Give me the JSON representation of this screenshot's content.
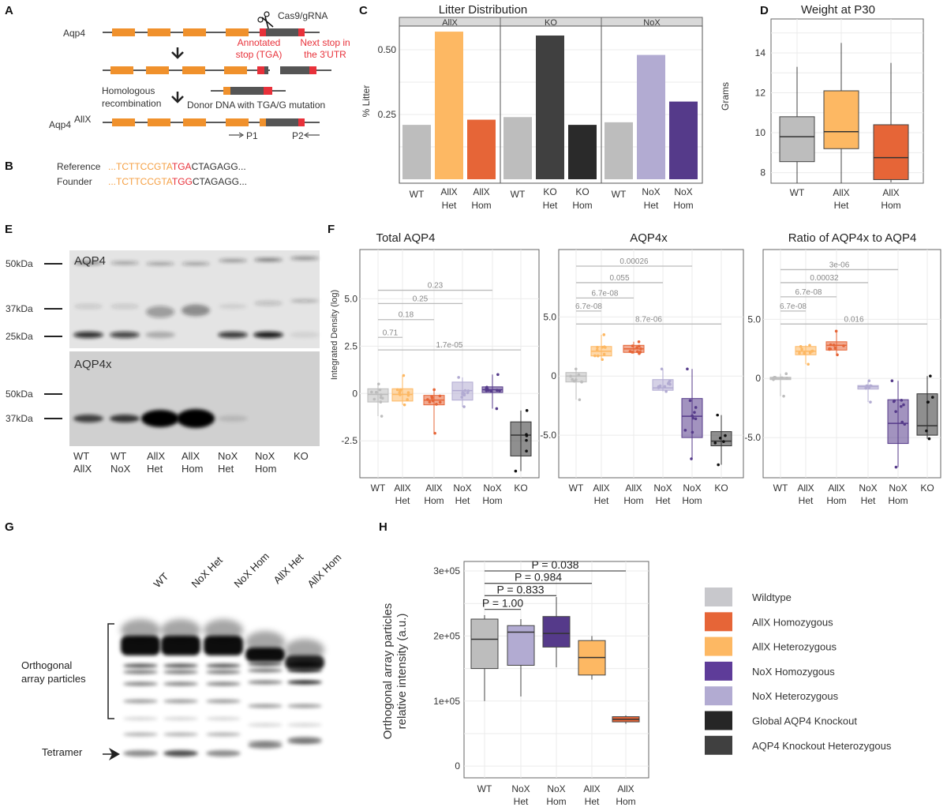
{
  "panel_labels": [
    "A",
    "B",
    "C",
    "D",
    "E",
    "F",
    "G",
    "H"
  ],
  "panel_a": {
    "gene_label": "Aqp4",
    "cas9_label": "Cas9/gRNA",
    "annotated_stop": [
      "Annotated",
      "stop (TGA)"
    ],
    "next_stop": [
      "Next stop in",
      "the 3'UTR"
    ],
    "recombination": [
      "Homologous",
      "recombination"
    ],
    "donor_label": "Donor DNA with TGA/G mutation",
    "allele_label": "Aqp4",
    "allele_superscript": "AllX",
    "primer1": "P1",
    "primer2": "P2",
    "colors": {
      "exon": "#f0912c",
      "stop": "#e8313a",
      "utr": "#555555"
    }
  },
  "panel_b": {
    "rows": [
      {
        "label": "Reference",
        "prefix": "...TCTTCCGTA",
        "codon": "TGA",
        "suffix": "CTAGAGG..."
      },
      {
        "label": "Founder",
        "prefix": "...TCTTCCGTA",
        "codon": "TGG",
        "suffix": "CTAGAGG..."
      }
    ],
    "colors": {
      "prefix": "#f5a044",
      "codon": "#e8313a",
      "suffix": "#333333"
    }
  },
  "panel_e": {
    "blots": [
      "AQP4",
      "AQP4x"
    ],
    "markers_top": [
      "50kDa",
      "37kDa",
      "25kDa"
    ],
    "markers_bottom": [
      "50kDa",
      "37kDa"
    ],
    "lanes": [
      [
        "WT",
        "AllX"
      ],
      [
        "WT",
        "NoX"
      ],
      [
        "AllX",
        "Het"
      ],
      [
        "AllX",
        "Hom"
      ],
      [
        "NoX",
        "Het"
      ],
      [
        "NoX",
        "Hom"
      ],
      [
        "KO",
        ""
      ]
    ]
  },
  "panel_g": {
    "lanes": [
      "WT",
      "NoX Het",
      "NoX Hom",
      "AllX Het",
      "AllX Hom"
    ],
    "bracket_label": [
      "Orthogonal",
      "array particles"
    ],
    "arrow_label": "Tetramer"
  },
  "chart_data": [
    {
      "type": "bar",
      "title": "Litter Distribution",
      "ylabel": "% Litter",
      "yticks": [
        0.25,
        0.5
      ],
      "ytick_labels": [
        "0.25",
        "0.50"
      ],
      "ylim": [
        0,
        0.59
      ],
      "grid": true,
      "facets": [
        {
          "name": "AllX",
          "categories": [
            [
              "WT"
            ],
            [
              "AllX",
              "Het"
            ],
            [
              "AllX",
              "Hom"
            ]
          ],
          "values": [
            0.21,
            0.57,
            0.23
          ],
          "colors": [
            "#bdbdbd",
            "#fdb863",
            "#e66537"
          ]
        },
        {
          "name": "KO",
          "categories": [
            [
              "WT"
            ],
            [
              "KO",
              "Het"
            ],
            [
              "KO",
              "Hom"
            ]
          ],
          "values": [
            0.24,
            0.555,
            0.21
          ],
          "colors": [
            "#bdbdbd",
            "#404040",
            "#2a2a2a"
          ]
        },
        {
          "name": "NoX",
          "categories": [
            [
              "WT"
            ],
            [
              "NoX",
              "Het"
            ],
            [
              "NoX",
              "Hom"
            ]
          ],
          "values": [
            0.22,
            0.48,
            0.3
          ],
          "colors": [
            "#bdbdbd",
            "#b2abd2",
            "#553a8a"
          ]
        }
      ]
    },
    {
      "type": "box",
      "title": "Weight at P30",
      "ylabel": "Grams",
      "yticks": [
        8,
        10,
        12,
        14
      ],
      "ytick_labels": [
        "8",
        "10",
        "12",
        "14"
      ],
      "ylim": [
        7.47,
        15.7
      ],
      "grid": true,
      "categories": [
        [
          "WT"
        ],
        [
          "AllX",
          "Het"
        ],
        [
          "AllX",
          "Hom"
        ]
      ],
      "colors": [
        "#bdbdbd",
        "#fdb863",
        "#e66537"
      ],
      "boxes": [
        {
          "min": 7.47,
          "q1": 8.55,
          "median": 9.8,
          "q3": 10.8,
          "max": 13.3
        },
        {
          "min": 7.47,
          "q1": 9.2,
          "median": 10.05,
          "q3": 12.1,
          "max": 14.5
        },
        {
          "min": 7.5,
          "q1": 7.65,
          "median": 8.75,
          "q3": 10.4,
          "max": 13.5
        }
      ]
    },
    {
      "type": "box",
      "title": "Total AQP4",
      "ylabel": "Integrated Density (log)",
      "yticks": [
        -2.5,
        0,
        2.5,
        5.0
      ],
      "ytick_labels": [
        "-2.5",
        "0",
        "2.5",
        "5.0"
      ],
      "ylim": [
        -4.45,
        7.6
      ],
      "grid": true,
      "categories": [
        [
          "WT"
        ],
        [
          "AllX",
          "Het"
        ],
        [
          "AllX",
          "Hom"
        ],
        [
          "NoX",
          "Het"
        ],
        [
          "NoX",
          "Hom"
        ],
        [
          "KO"
        ]
      ],
      "colors": [
        "#bdbdbd",
        "#fdb863",
        "#e66537",
        "#b2abd2",
        "#553a8a",
        "#333333"
      ],
      "boxes": [
        {
          "min": -1.2,
          "q1": -0.45,
          "median": -0.05,
          "q3": 0.25,
          "max": 0.5
        },
        {
          "min": -0.6,
          "q1": -0.4,
          "median": -0.05,
          "q3": 0.25,
          "max": 0.95
        },
        {
          "min": -2.1,
          "q1": -0.6,
          "median": -0.35,
          "q3": -0.1,
          "max": 0.2
        },
        {
          "min": -0.7,
          "q1": -0.35,
          "median": 0.15,
          "q3": 0.6,
          "max": 0.85
        },
        {
          "min": -0.8,
          "q1": 0.05,
          "median": 0.2,
          "q3": 0.35,
          "max": 1.0
        },
        {
          "min": -4.1,
          "q1": -3.3,
          "median": -2.2,
          "q3": -1.5,
          "max": -0.9
        }
      ],
      "comparisons": [
        {
          "from": 0,
          "to": 1,
          "p": "0.71",
          "y": 2.96
        },
        {
          "from": 0,
          "to": 2,
          "p": "0.18",
          "y": 3.9
        },
        {
          "from": 0,
          "to": 3,
          "p": "0.25",
          "y": 4.75
        },
        {
          "from": 0,
          "to": 4,
          "p": "0.23",
          "y": 5.45
        },
        {
          "from": 0,
          "to": 5,
          "p": "1.7e-05",
          "y": 2.3
        }
      ]
    },
    {
      "type": "box",
      "title": "AQP4x",
      "yticks": [
        -5.0,
        0,
        5.0
      ],
      "ytick_labels": [
        "-5.0",
        "0",
        "5.0"
      ],
      "ylim": [
        -8.6,
        10.7
      ],
      "grid": true,
      "categories": [
        [
          "WT"
        ],
        [
          "AllX",
          "Het"
        ],
        [
          "AllX",
          "Hom"
        ],
        [
          "NoX",
          "Het"
        ],
        [
          "NoX",
          "Hom"
        ],
        [
          "KO"
        ]
      ],
      "colors": [
        "#bdbdbd",
        "#fdb863",
        "#e66537",
        "#b2abd2",
        "#553a8a",
        "#333333"
      ],
      "boxes": [
        {
          "min": -2.0,
          "q1": -0.5,
          "median": 0.0,
          "q3": 0.3,
          "max": 0.6
        },
        {
          "min": 1.4,
          "q1": 1.7,
          "median": 2.1,
          "q3": 2.5,
          "max": 3.5
        },
        {
          "min": 1.9,
          "q1": 2.0,
          "median": 2.3,
          "q3": 2.6,
          "max": 2.9
        },
        {
          "min": -1.3,
          "q1": -1.2,
          "median": -1.0,
          "q3": -0.3,
          "max": 0.6
        },
        {
          "min": -7.0,
          "q1": -5.2,
          "median": -3.4,
          "q3": -1.9,
          "max": 0.6
        },
        {
          "min": -7.5,
          "q1": -5.9,
          "median": -5.5,
          "q3": -4.7,
          "max": -3.3
        }
      ],
      "comparisons": [
        {
          "from": 0,
          "to": 1,
          "p": "6.7e-08",
          "y": 5.5
        },
        {
          "from": 0,
          "to": 2,
          "p": "6.7e-08",
          "y": 6.6
        },
        {
          "from": 0,
          "to": 3,
          "p": "0.055",
          "y": 7.9
        },
        {
          "from": 0,
          "to": 4,
          "p": "0.00026",
          "y": 9.3
        },
        {
          "from": 0,
          "to": 5,
          "p": "8.7e-06",
          "y": 4.4
        }
      ]
    },
    {
      "type": "box",
      "title": "Ratio of AQP4x to AQP4",
      "yticks": [
        -5.0,
        0,
        5.0
      ],
      "ytick_labels": [
        "-5.0",
        "0",
        "5.0"
      ],
      "ylim": [
        -8.4,
        10.9
      ],
      "grid": true,
      "categories": [
        [
          "WT"
        ],
        [
          "AllX",
          "Het"
        ],
        [
          "AllX",
          "Hom"
        ],
        [
          "NoX",
          "Het"
        ],
        [
          "NoX",
          "Hom"
        ],
        [
          "KO"
        ]
      ],
      "colors": [
        "#bdbdbd",
        "#fdb863",
        "#e66537",
        "#b2abd2",
        "#553a8a",
        "#333333"
      ],
      "boxes": [
        {
          "min": -1.5,
          "q1": -0.1,
          "median": 0.0,
          "q3": 0.1,
          "max": 0.4
        },
        {
          "min": 1.2,
          "q1": 2.0,
          "median": 2.3,
          "q3": 2.7,
          "max": 2.8
        },
        {
          "min": 2.0,
          "q1": 2.4,
          "median": 2.8,
          "q3": 3.1,
          "max": 4.0
        },
        {
          "min": -2.0,
          "q1": -0.9,
          "median": -0.7,
          "q3": -0.6,
          "max": -0.2
        },
        {
          "min": -7.5,
          "q1": -5.5,
          "median": -3.8,
          "q3": -1.8,
          "max": -0.2
        },
        {
          "min": -5.1,
          "q1": -4.8,
          "median": -4.0,
          "q3": -1.3,
          "max": 0.2
        }
      ],
      "comparisons": [
        {
          "from": 0,
          "to": 1,
          "p": "6.7e-08",
          "y": 5.7
        },
        {
          "from": 0,
          "to": 2,
          "p": "6.7e-08",
          "y": 6.9
        },
        {
          "from": 0,
          "to": 3,
          "p": "0.00032",
          "y": 8.1
        },
        {
          "from": 0,
          "to": 4,
          "p": "3e-06",
          "y": 9.2
        },
        {
          "from": 0,
          "to": 5,
          "p": "0.016",
          "y": 4.6
        }
      ]
    },
    {
      "type": "box",
      "ylabel": [
        "Orthogonal array particles",
        "relative intensity (a.u.)"
      ],
      "yticks": [
        0,
        100000,
        200000,
        300000
      ],
      "ytick_labels": [
        "0",
        "1e+05",
        "2e+05",
        "3e+05"
      ],
      "ylim": [
        -18000,
        314600
      ],
      "grid": true,
      "categories": [
        [
          "WT"
        ],
        [
          "NoX",
          "Het"
        ],
        [
          "NoX",
          "Hom"
        ],
        [
          "AllX",
          "Het"
        ],
        [
          "AllX",
          "Hom"
        ]
      ],
      "colors": [
        "#bdbdbd",
        "#b2abd2",
        "#553a8a",
        "#fdb863",
        "#e66537"
      ],
      "boxes": [
        {
          "min": 100000,
          "q1": 150000,
          "median": 195000,
          "q3": 226000,
          "max": 232000
        },
        {
          "min": 107000,
          "q1": 155000,
          "median": 206000,
          "q3": 216000,
          "max": 226000
        },
        {
          "min": 152000,
          "q1": 183000,
          "median": 204000,
          "q3": 230000,
          "max": 260000
        },
        {
          "min": 133000,
          "q1": 140000,
          "median": 167000,
          "q3": 193000,
          "max": 200000
        },
        {
          "min": 65000,
          "q1": 68000,
          "median": 72000,
          "q3": 76000,
          "max": 78000
        }
      ],
      "comparisons": [
        {
          "from": 0,
          "to": 1,
          "p": "P = 1.00",
          "y": 241000
        },
        {
          "from": 0,
          "to": 2,
          "p": "P = 0.833",
          "y": 262000
        },
        {
          "from": 0,
          "to": 3,
          "p": "P = 0.984",
          "y": 281000
        },
        {
          "from": 0,
          "to": 4,
          "p": "P = 0.038",
          "y": 300000
        }
      ],
      "legend": {
        "placement": "right",
        "entries": [
          {
            "label": "Wildtype",
            "color": "#c8c8cc"
          },
          {
            "label": "AllX Homozygous",
            "color": "#e66537"
          },
          {
            "label": "AllX Heterozygous",
            "color": "#fdb863"
          },
          {
            "label": "NoX Homozygous",
            "color": "#5e3c99"
          },
          {
            "label": "NoX Heterozygous",
            "color": "#b2abd2"
          },
          {
            "label": "Global AQP4 Knockout",
            "color": "#262626"
          },
          {
            "label": "AQP4 Knockout Heterozygous",
            "color": "#404040"
          }
        ]
      }
    }
  ]
}
